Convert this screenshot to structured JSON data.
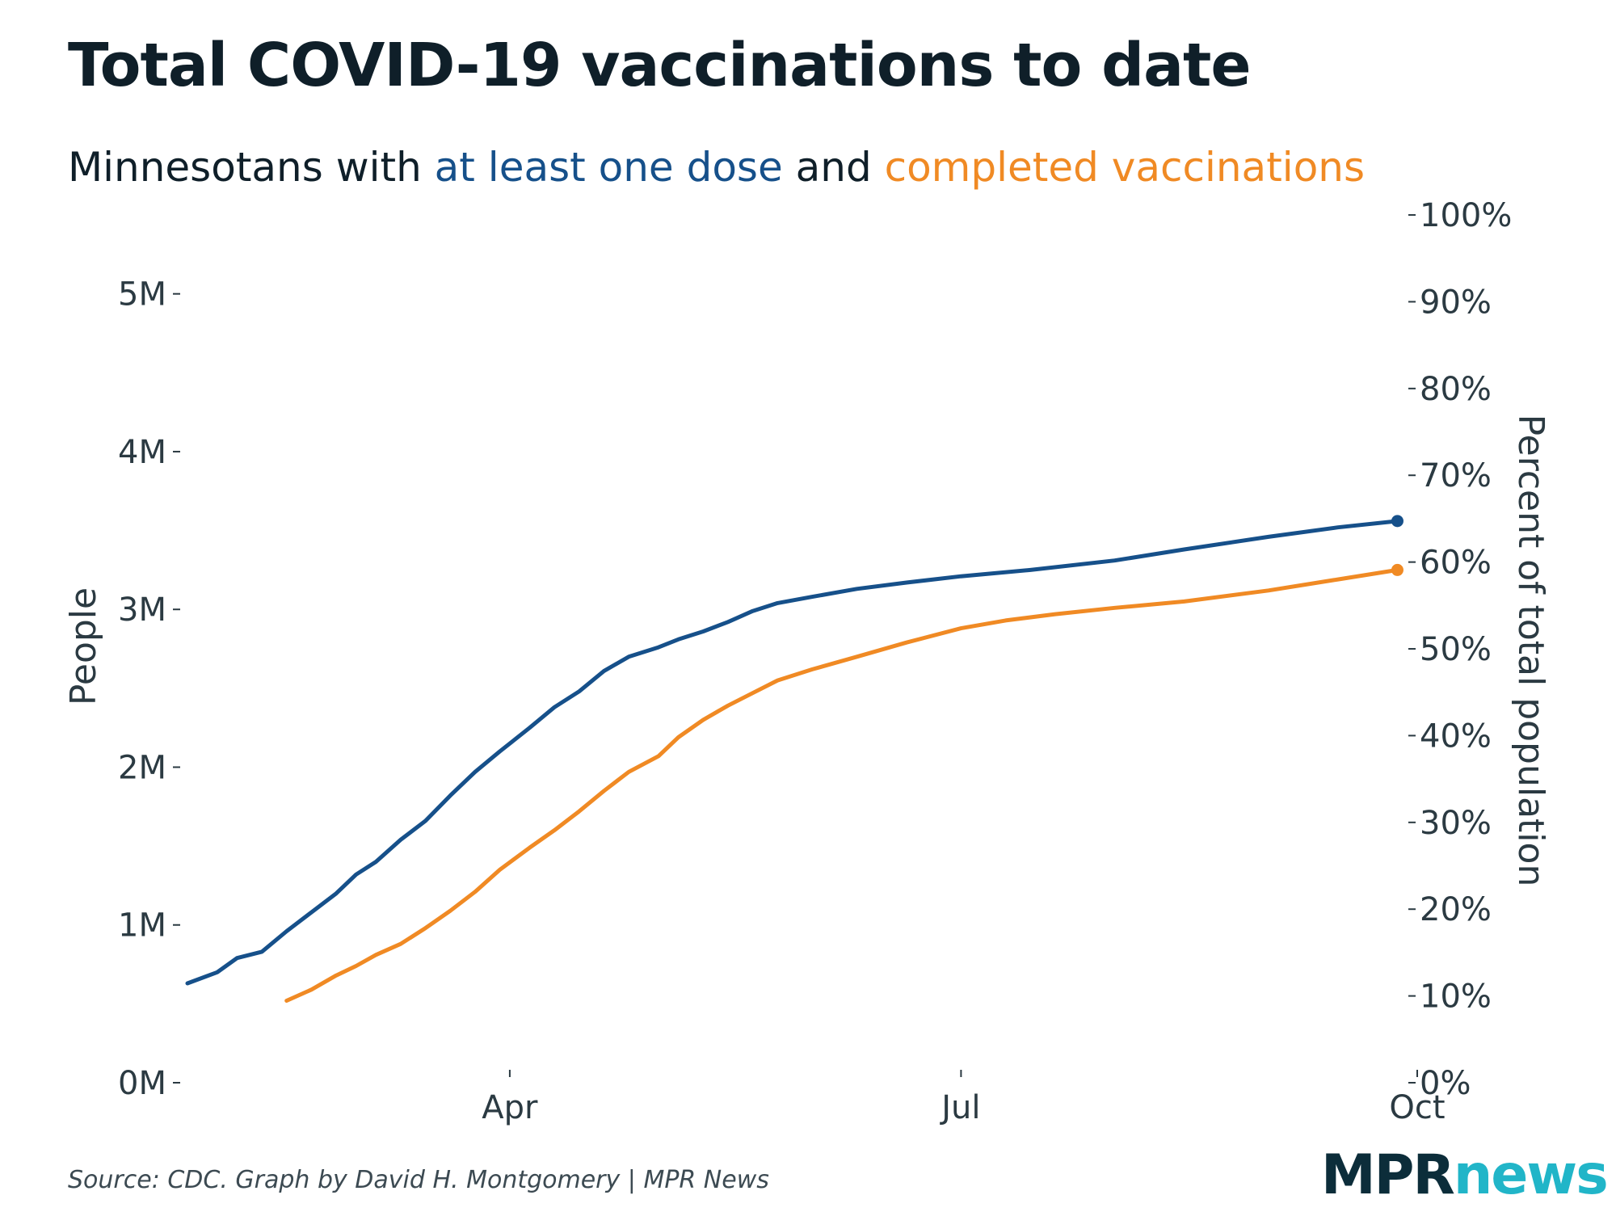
{
  "header": {
    "title": "Total COVID-19 vaccinations to date",
    "subtitle_prefix": "Minnesotans with ",
    "subtitle_series1": "at least one dose",
    "subtitle_middle": " and ",
    "subtitle_series2": "completed vaccinations"
  },
  "footer": {
    "source": "Source: CDC. Graph by David H. Montgomery | MPR News",
    "logo_mpr": "MPR",
    "logo_news": "news"
  },
  "colors": {
    "one_dose": "#16508a",
    "completed": "#f08a24",
    "axis_text": "#2b3a42",
    "logo_dark": "#0c2d3a",
    "logo_teal": "#21b5c8"
  },
  "chart_data": {
    "type": "line",
    "x_unit": "date",
    "xlim": [
      "2021-01-26",
      "2021-10-01"
    ],
    "x_ticks": [
      "2021-04-01",
      "2021-07-01",
      "2021-10-01"
    ],
    "x_tick_labels": [
      "Apr",
      "Jul",
      "Oct"
    ],
    "y_left": {
      "label": "People",
      "lim": [
        0,
        5700000
      ],
      "ticks": [
        0,
        1000000,
        2000000,
        3000000,
        4000000,
        5000000
      ],
      "tick_labels": [
        "0M",
        "1M",
        "2M",
        "3M",
        "4M",
        "5M"
      ]
    },
    "y_right": {
      "label": "Percent of total population",
      "ticks": [
        0,
        10,
        20,
        30,
        40,
        50,
        60,
        70,
        80,
        90,
        100
      ],
      "tick_labels": [
        "0%",
        "10%",
        "20%",
        "30%",
        "40%",
        "50%",
        "60%",
        "70%",
        "80%",
        "90%",
        "100%"
      ]
    },
    "grid": false,
    "legend": "subtitle",
    "series": [
      {
        "key": "one_dose",
        "points": [
          [
            "2021-01-26",
            630000
          ],
          [
            "2021-02-01",
            700000
          ],
          [
            "2021-02-05",
            790000
          ],
          [
            "2021-02-10",
            830000
          ],
          [
            "2021-02-15",
            960000
          ],
          [
            "2021-02-20",
            1080000
          ],
          [
            "2021-02-25",
            1200000
          ],
          [
            "2021-03-01",
            1320000
          ],
          [
            "2021-03-05",
            1400000
          ],
          [
            "2021-03-10",
            1540000
          ],
          [
            "2021-03-15",
            1660000
          ],
          [
            "2021-03-20",
            1820000
          ],
          [
            "2021-03-25",
            1970000
          ],
          [
            "2021-03-30",
            2100000
          ],
          [
            "2021-04-05",
            2250000
          ],
          [
            "2021-04-10",
            2380000
          ],
          [
            "2021-04-15",
            2480000
          ],
          [
            "2021-04-20",
            2610000
          ],
          [
            "2021-04-25",
            2700000
          ],
          [
            "2021-05-01",
            2760000
          ],
          [
            "2021-05-05",
            2810000
          ],
          [
            "2021-05-10",
            2860000
          ],
          [
            "2021-05-15",
            2920000
          ],
          [
            "2021-05-20",
            2990000
          ],
          [
            "2021-05-25",
            3040000
          ],
          [
            "2021-06-01",
            3080000
          ],
          [
            "2021-06-10",
            3130000
          ],
          [
            "2021-06-20",
            3170000
          ],
          [
            "2021-07-01",
            3210000
          ],
          [
            "2021-07-15",
            3250000
          ],
          [
            "2021-08-01",
            3310000
          ],
          [
            "2021-08-15",
            3380000
          ],
          [
            "2021-09-01",
            3460000
          ],
          [
            "2021-09-15",
            3520000
          ],
          [
            "2021-09-27",
            3560000
          ]
        ]
      },
      {
        "key": "completed",
        "points": [
          [
            "2021-02-15",
            520000
          ],
          [
            "2021-02-20",
            590000
          ],
          [
            "2021-02-25",
            680000
          ],
          [
            "2021-03-01",
            740000
          ],
          [
            "2021-03-05",
            810000
          ],
          [
            "2021-03-10",
            880000
          ],
          [
            "2021-03-15",
            980000
          ],
          [
            "2021-03-20",
            1090000
          ],
          [
            "2021-03-25",
            1210000
          ],
          [
            "2021-03-30",
            1350000
          ],
          [
            "2021-04-05",
            1490000
          ],
          [
            "2021-04-10",
            1600000
          ],
          [
            "2021-04-15",
            1720000
          ],
          [
            "2021-04-20",
            1850000
          ],
          [
            "2021-04-25",
            1970000
          ],
          [
            "2021-05-01",
            2070000
          ],
          [
            "2021-05-05",
            2190000
          ],
          [
            "2021-05-10",
            2300000
          ],
          [
            "2021-05-15",
            2390000
          ],
          [
            "2021-05-20",
            2470000
          ],
          [
            "2021-05-25",
            2550000
          ],
          [
            "2021-06-01",
            2620000
          ],
          [
            "2021-06-10",
            2700000
          ],
          [
            "2021-06-20",
            2790000
          ],
          [
            "2021-07-01",
            2880000
          ],
          [
            "2021-07-10",
            2930000
          ],
          [
            "2021-07-20",
            2970000
          ],
          [
            "2021-08-01",
            3010000
          ],
          [
            "2021-08-15",
            3050000
          ],
          [
            "2021-09-01",
            3120000
          ],
          [
            "2021-09-15",
            3190000
          ],
          [
            "2021-09-27",
            3250000
          ]
        ]
      }
    ]
  }
}
